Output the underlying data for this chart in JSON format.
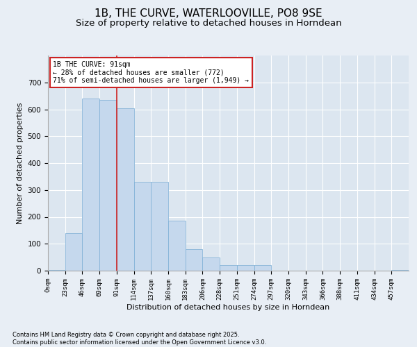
{
  "title": "1B, THE CURVE, WATERLOOVILLE, PO8 9SE",
  "subtitle": "Size of property relative to detached houses in Horndean",
  "xlabel": "Distribution of detached houses by size in Horndean",
  "ylabel": "Number of detached properties",
  "categories": [
    "0sqm",
    "23sqm",
    "46sqm",
    "69sqm",
    "91sqm",
    "114sqm",
    "137sqm",
    "160sqm",
    "183sqm",
    "206sqm",
    "228sqm",
    "251sqm",
    "274sqm",
    "297sqm",
    "320sqm",
    "343sqm",
    "366sqm",
    "388sqm",
    "411sqm",
    "434sqm",
    "457sqm"
  ],
  "values": [
    2,
    140,
    640,
    635,
    605,
    330,
    330,
    185,
    80,
    50,
    20,
    20,
    20,
    0,
    0,
    0,
    0,
    0,
    0,
    0,
    2
  ],
  "bar_color": "#c5d8ed",
  "bar_edge_color": "#7aadd4",
  "vline_color": "#cc2222",
  "annotation_text": "1B THE CURVE: 91sqm\n← 28% of detached houses are smaller (772)\n71% of semi-detached houses are larger (1,949) →",
  "annotation_box_color": "#ffffff",
  "annotation_box_edge": "#cc2222",
  "background_color": "#e8eef5",
  "plot_bg_color": "#dce6f0",
  "ylim": [
    0,
    800
  ],
  "yticks": [
    0,
    100,
    200,
    300,
    400,
    500,
    600,
    700
  ],
  "footer": "Contains HM Land Registry data © Crown copyright and database right 2025.\nContains public sector information licensed under the Open Government Licence v3.0.",
  "title_fontsize": 11,
  "subtitle_fontsize": 9.5,
  "label_fontsize": 8,
  "tick_fontsize": 7.5,
  "footer_fontsize": 6
}
